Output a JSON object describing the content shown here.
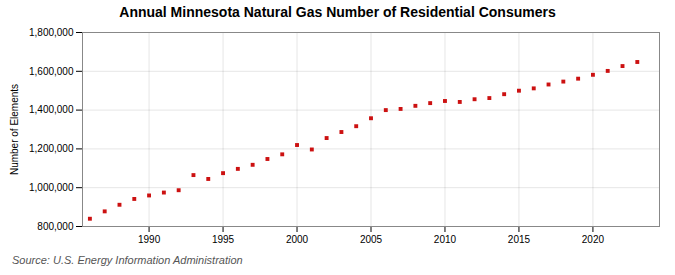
{
  "chart_data": {
    "type": "scatter",
    "title": "Annual Minnesota Natural Gas Number of Residential Consumers",
    "ylabel": "Number of Elements",
    "annotations": [
      "Source: U.S. Energy Information Administration"
    ],
    "x": [
      1986,
      1987,
      1988,
      1989,
      1990,
      1991,
      1992,
      1993,
      1994,
      1995,
      1996,
      1997,
      1998,
      1999,
      2000,
      2001,
      2002,
      2003,
      2004,
      2005,
      2006,
      2007,
      2008,
      2009,
      2010,
      2011,
      2012,
      2013,
      2014,
      2015,
      2016,
      2017,
      2018,
      2019,
      2020,
      2021,
      2022,
      2023
    ],
    "values": [
      840000,
      878000,
      912000,
      942000,
      960000,
      975000,
      987000,
      1065000,
      1045000,
      1075000,
      1097000,
      1118000,
      1148000,
      1172000,
      1220000,
      1197000,
      1256000,
      1287000,
      1317000,
      1358000,
      1400000,
      1406000,
      1422000,
      1436000,
      1447000,
      1442000,
      1456000,
      1462000,
      1482000,
      1500000,
      1512000,
      1532000,
      1547000,
      1562000,
      1582000,
      1602000,
      1627000,
      1648000
    ],
    "color": "#cc1111",
    "marker": "square",
    "xlim": [
      1985.5,
      2024.5
    ],
    "xticks": [
      1990,
      1995,
      2000,
      2005,
      2010,
      2015,
      2020
    ],
    "ylim": [
      800000,
      1800000
    ],
    "yticks": [
      {
        "value": 800000,
        "label": "800,000"
      },
      {
        "value": 1000000,
        "label": "1,000,000"
      },
      {
        "value": 1200000,
        "label": "1,200,000"
      },
      {
        "value": 1400000,
        "label": "1,400,000"
      },
      {
        "value": 1600000,
        "label": "1,600,000"
      },
      {
        "value": 1800000,
        "label": "1,800,000"
      }
    ],
    "grid": true
  }
}
